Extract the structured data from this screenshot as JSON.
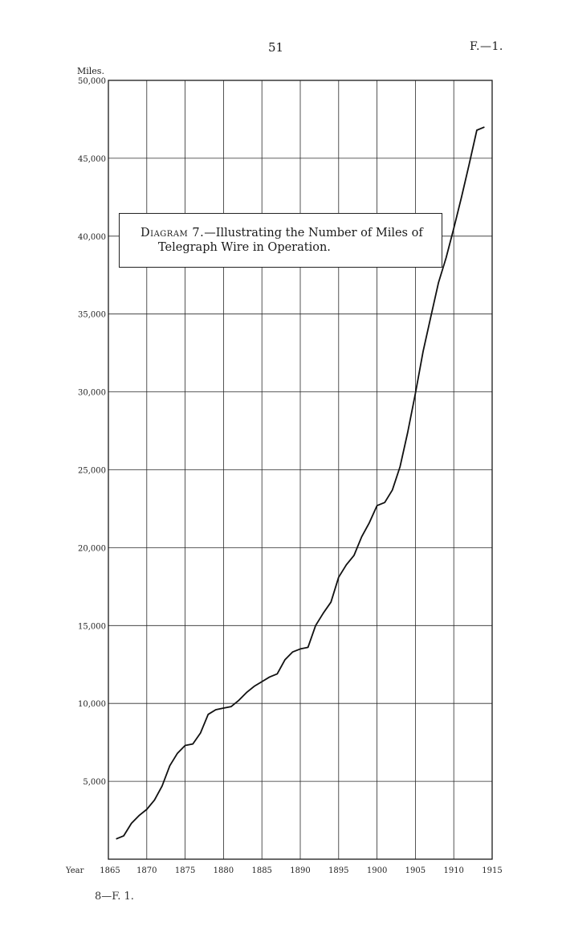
{
  "page": {
    "number": "51",
    "reference": "F.—1.",
    "footer": "8—F. 1."
  },
  "chart_data": {
    "type": "line",
    "title_prefix": "Diagram 7.",
    "title_line1": "—Illustrating the Number of Miles of",
    "title_line2": "Telegraph Wire in Operation.",
    "xlabel": "Year",
    "ylabel": "Miles.",
    "xlim": [
      1865,
      1915
    ],
    "ylim": [
      0,
      50000
    ],
    "x_ticks": [
      1865,
      1870,
      1875,
      1880,
      1885,
      1890,
      1895,
      1900,
      1905,
      1910,
      1915
    ],
    "x_tick_labels": [
      "1865",
      "1870",
      "1875",
      "1880",
      "1885",
      "1890",
      "1895",
      "1900",
      "1905",
      "1910",
      "1915"
    ],
    "y_ticks": [
      5000,
      10000,
      15000,
      20000,
      25000,
      30000,
      35000,
      40000,
      45000,
      50000
    ],
    "y_tick_labels": [
      "5,000",
      "10,000",
      "15,000",
      "20,000",
      "25,000",
      "30,000",
      "35,000",
      "40,000",
      "45,000",
      "50,000"
    ],
    "grid": true,
    "series": [
      {
        "x": [
          1866,
          1867,
          1868,
          1869,
          1870,
          1871,
          1872,
          1873,
          1874,
          1875,
          1876,
          1877,
          1878,
          1879,
          1880,
          1881,
          1882,
          1883,
          1884,
          1885,
          1886,
          1887,
          1888,
          1889,
          1890,
          1891,
          1892,
          1893,
          1894,
          1895,
          1896,
          1897,
          1898,
          1899,
          1900,
          1901,
          1902,
          1903,
          1904,
          1905,
          1906,
          1907,
          1908,
          1909,
          1910,
          1911,
          1912,
          1913,
          1914
        ],
        "values": [
          1300,
          1500,
          2300,
          2800,
          3200,
          3800,
          4700,
          6000,
          6800,
          7300,
          7400,
          8100,
          9300,
          9600,
          9700,
          9800,
          10200,
          10700,
          11100,
          11400,
          11700,
          11900,
          12800,
          13300,
          13500,
          13600,
          15000,
          15800,
          16500,
          18100,
          18900,
          19500,
          20700,
          21600,
          22700,
          22900,
          23700,
          25200,
          27400,
          29900,
          32600,
          34800,
          37000,
          38600,
          40500,
          42500,
          44600,
          46800,
          47000
        ]
      }
    ]
  }
}
